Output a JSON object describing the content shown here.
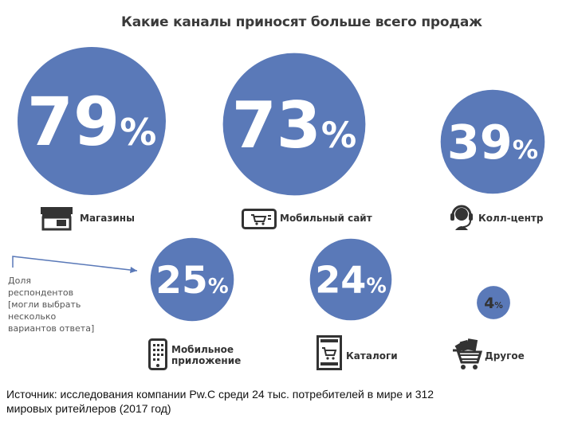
{
  "chart_data": {
    "type": "bubble",
    "title": "Какие каналы приносят больше всего продаж",
    "unit": "%",
    "categories": [
      "Магазины",
      "Мобильный сайт",
      "Колл-центр",
      "Мобильное приложение",
      "Каталоги",
      "Другое"
    ],
    "values": [
      79,
      73,
      39,
      25,
      24,
      4
    ],
    "color": "#5a79b8"
  },
  "labels": {
    "stores": "Магазины",
    "mobile_site": "Мобильный сайт",
    "call_center": "Колл-центр",
    "mobile_app_1": "Мобильное",
    "mobile_app_2": "приложение",
    "catalogs": "Каталоги",
    "other": "Другое"
  },
  "note": {
    "line1": "Доля",
    "line2": "респондентов",
    "line3": "[могли выбрать",
    "line4": "несколько",
    "line5": "вариантов ответа]"
  },
  "source": {
    "line1": "Источник: исследования компании Pw.C среди 24 тыс. потребителей в мире и 312",
    "line2": "мировых ритейлеров (2017 год)"
  },
  "icons": [
    "store-icon",
    "mobile-site-icon",
    "headset-icon",
    "smartphone-icon",
    "catalog-icon",
    "cart-icon"
  ]
}
